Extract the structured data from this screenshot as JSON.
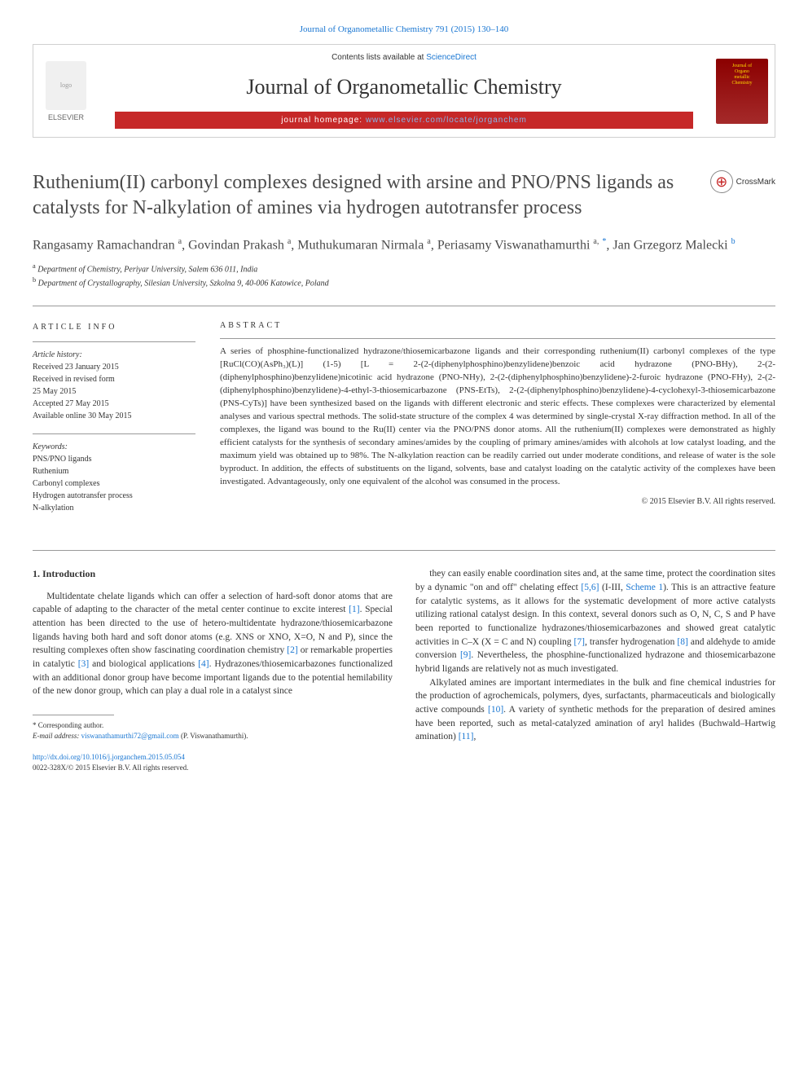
{
  "header": {
    "top_citation": "Journal of Organometallic Chemistry 791 (2015) 130–140",
    "contents_prefix": "Contents lists available at ",
    "contents_link": "ScienceDirect",
    "journal_name": "Journal of Organometallic Chemistry",
    "homepage_prefix": "journal homepage: ",
    "homepage_url": "www.elsevier.com/locate/jorganchem",
    "elsevier_label": "ELSEVIER",
    "cover_line1": "Journal of",
    "cover_line2": "Organo",
    "cover_line3": "metallic",
    "cover_line4": "Chemistry",
    "crossmark_label": "CrossMark"
  },
  "article": {
    "title": "Ruthenium(II) carbonyl complexes designed with arsine and PNO/PNS ligands as catalysts for N-alkylation of amines via hydrogen autotransfer process",
    "authors_html": "Rangasamy Ramachandran <sup class='sup-plain'>a</sup>, Govindan Prakash <sup class='sup-plain'>a</sup>, Muthukumaran Nirmala <sup class='sup-plain'>a</sup>, Periasamy Viswanathamurthi <sup class='sup-plain'>a,</sup> <sup>*</sup>, Jan Grzegorz Malecki <sup>b</sup>",
    "affiliations": {
      "a": "Department of Chemistry, Periyar University, Salem 636 011, India",
      "b": "Department of Crystallography, Silesian University, Szkolna 9, 40-006 Katowice, Poland"
    }
  },
  "info": {
    "heading": "ARTICLE INFO",
    "history_label": "Article history:",
    "history": [
      "Received 23 January 2015",
      "Received in revised form",
      "25 May 2015",
      "Accepted 27 May 2015",
      "Available online 30 May 2015"
    ],
    "keywords_label": "Keywords:",
    "keywords": [
      "PNS/PNO ligands",
      "Ruthenium",
      "Carbonyl complexes",
      "Hydrogen autotransfer process",
      "N-alkylation"
    ]
  },
  "abstract": {
    "heading": "ABSTRACT",
    "text": "A series of phosphine-functionalized hydrazone/thiosemicarbazone ligands and their corresponding ruthenium(II) carbonyl complexes of the type [RuCl(CO)(AsPh₃)(L)] (1-5) [L = 2-(2-(diphenylphosphino)benzylidene)benzoic acid hydrazone (PNO-BHy), 2-(2-(diphenylphosphino)benzylidene)nicotinic acid hydrazone (PNO-NHy), 2-(2-(diphenylphosphino)benzylidene)-2-furoic hydrazone (PNO-FHy), 2-(2-(diphenylphosphino)benzylidene)-4-ethyl-3-thiosemicarbazone (PNS-EtTs), 2-(2-(diphenylphosphino)benzylidene)-4-cyclohexyl-3-thiosemicarbazone (PNS-CyTs)] have been synthesized based on the ligands with different electronic and steric effects. These complexes were characterized by elemental analyses and various spectral methods. The solid-state structure of the complex 4 was determined by single-crystal X-ray diffraction method. In all of the complexes, the ligand was bound to the Ru(II) center via the PNO/PNS donor atoms. All the ruthenium(II) complexes were demonstrated as highly efficient catalysts for the synthesis of secondary amines/amides by the coupling of primary amines/amides with alcohols at low catalyst loading, and the maximum yield was obtained up to 98%. The N-alkylation reaction can be readily carried out under moderate conditions, and release of water is the sole byproduct. In addition, the effects of substituents on the ligand, solvents, base and catalyst loading on the catalytic activity of the complexes have been investigated. Advantageously, only one equivalent of the alcohol was consumed in the process.",
    "copyright": "© 2015 Elsevier B.V. All rights reserved."
  },
  "body": {
    "section_heading": "1. Introduction",
    "col1_p1": "Multidentate chelate ligands which can offer a selection of hard-soft donor atoms that are capable of adapting to the character of the metal center continue to excite interest [1]. Special attention has been directed to the use of hetero-multidentate hydrazone/thiosemicarbazone ligands having both hard and soft donor atoms (e.g. XNS or XNO, X=O, N and P), since the resulting complexes often show fascinating coordination chemistry [2] or remarkable properties in catalytic [3] and biological applications [4]. Hydrazones/thiosemicarbazones functionalized with an additional donor group have become important ligands due to the potential hemilability of the new donor group, which can play a dual role in a catalyst since",
    "col2_p1": "they can easily enable coordination sites and, at the same time, protect the coordination sites by a dynamic \"on and off\" chelating effect [5,6] (I-III, Scheme 1). This is an attractive feature for catalytic systems, as it allows for the systematic development of more active catalysts utilizing rational catalyst design. In this context, several donors such as O, N, C, S and P have been reported to functionalize hydrazones/thiosemicarbazones and showed great catalytic activities in C–X (X = C and N) coupling [7], transfer hydrogenation [8] and aldehyde to amide conversion [9]. Nevertheless, the phosphine-functionalized hydrazone and thiosemicarbazone hybrid ligands are relatively not as much investigated.",
    "col2_p2": "Alkylated amines are important intermediates in the bulk and fine chemical industries for the production of agrochemicals, polymers, dyes, surfactants, pharmaceuticals and biologically active compounds [10]. A variety of synthetic methods for the preparation of desired amines have been reported, such as metal-catalyzed amination of aryl halides (Buchwald–Hartwig amination) [11],"
  },
  "footnote": {
    "corresponding": "* Corresponding author.",
    "email_label": "E-mail address: ",
    "email": "viswanathamurthi72@gmail.com",
    "email_suffix": " (P. Viswanathamurthi)."
  },
  "doi": {
    "url": "http://dx.doi.org/10.1016/j.jorganchem.2015.05.054",
    "issn_copyright": "0022-328X/© 2015 Elsevier B.V. All rights reserved."
  },
  "colors": {
    "link": "#1976d2",
    "banner_bar": "#c62828",
    "text": "#333333",
    "title_gray": "#4a4a4a"
  }
}
